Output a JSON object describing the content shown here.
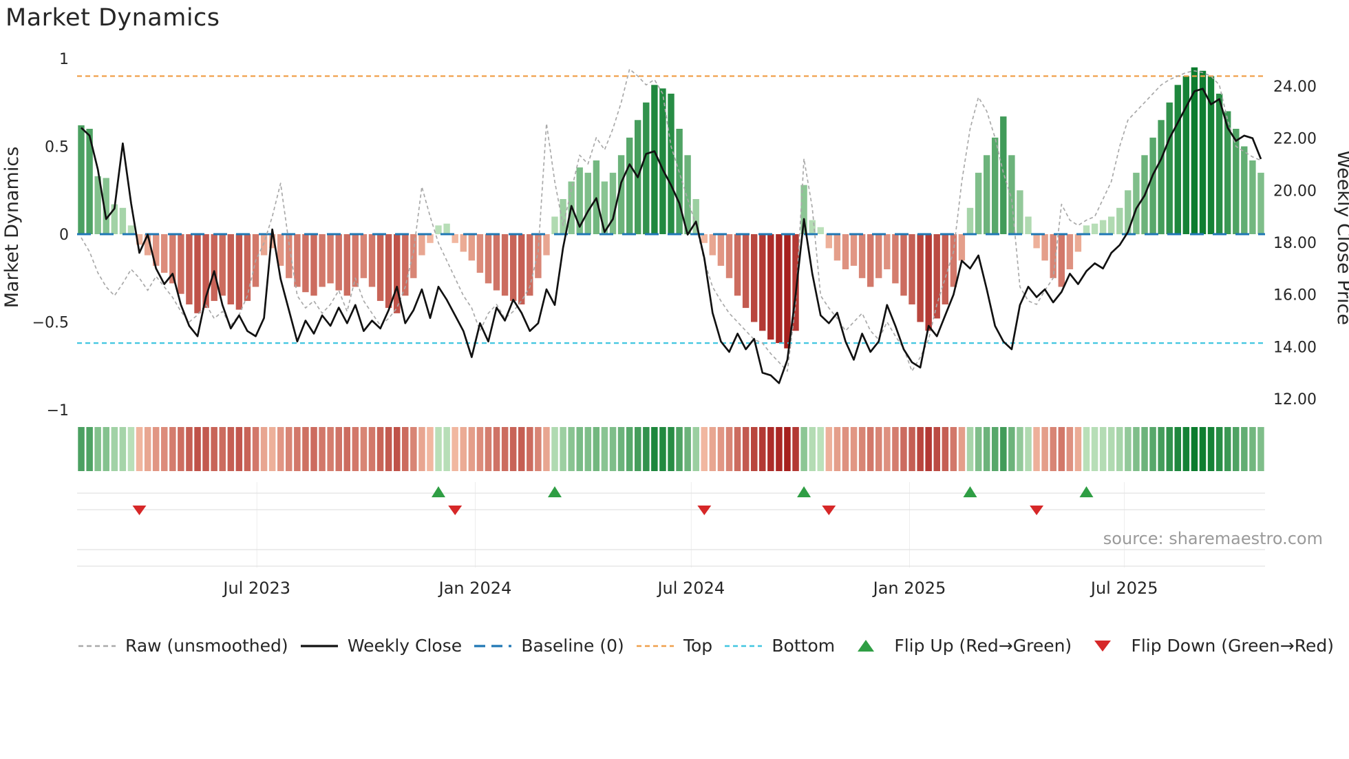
{
  "page": {
    "title": "Market Dynamics",
    "source": "source: sharemaestro.com"
  },
  "axes": {
    "left_label": "Market Dynamics",
    "right_label": "Weekly Close Price",
    "left_ticks": [
      "1",
      "0.5",
      "0",
      "−0.5",
      "−1"
    ],
    "left_tick_values": [
      1,
      0.5,
      0,
      -0.5,
      -1
    ],
    "right_ticks": [
      "24.00",
      "22.00",
      "20.00",
      "18.00",
      "16.00",
      "14.00",
      "12.00"
    ],
    "right_tick_values": [
      24,
      22,
      20,
      18,
      16,
      14,
      12
    ],
    "x_ticks": [
      {
        "label": "Jul 2023",
        "week": 21.14
      },
      {
        "label": "Jan 2024",
        "week": 47.43
      },
      {
        "label": "Jul 2024",
        "week": 73.43
      },
      {
        "label": "Jan 2025",
        "week": 99.71
      },
      {
        "label": "Jul 2025",
        "week": 125.57
      }
    ]
  },
  "legend": {
    "items": [
      {
        "label": "Raw (unsmoothed)",
        "type": "dash",
        "color": "#a9a9a9"
      },
      {
        "label": "Weekly Close",
        "type": "solid",
        "color": "#111111"
      },
      {
        "label": "Baseline (0)",
        "type": "longdash",
        "color": "#1f77b4"
      },
      {
        "label": "Top",
        "type": "dash",
        "color": "#f0a04b"
      },
      {
        "label": "Bottom",
        "type": "dash",
        "color": "#41c6e0"
      },
      {
        "label": "Flip Up (Red→Green)",
        "type": "tri-up",
        "color": "#2f9e44"
      },
      {
        "label": "Flip Down (Green→Red)",
        "type": "tri-down",
        "color": "#d62728"
      }
    ]
  },
  "chart_data": {
    "type": "bar",
    "subtype": "oscillator bars + price line combo with heatmap strip and flip markers",
    "title": "Market Dynamics",
    "xlabel": "",
    "ylabel_left": "Market Dynamics",
    "ylabel_right": "Weekly Close Price",
    "left_axis_range": [
      -1.08,
      1.08
    ],
    "right_axis_range": [
      11.45,
      24.8
    ],
    "start_date": "2023-02-03",
    "frequency_days": 7,
    "n_weeks": 143,
    "reference_lines": {
      "baseline": 0,
      "top": 0.9,
      "bottom": -0.62
    },
    "flip_up_weeks": [
      43,
      57,
      87,
      107,
      121
    ],
    "flip_down_weeks": [
      7,
      45,
      75,
      90,
      115
    ],
    "oscillator": [
      0.62,
      0.6,
      0.33,
      0.32,
      0.17,
      0.15,
      0.05,
      -0.06,
      -0.12,
      -0.18,
      -0.22,
      -0.28,
      -0.34,
      -0.4,
      -0.45,
      -0.42,
      -0.38,
      -0.35,
      -0.4,
      -0.43,
      -0.38,
      -0.3,
      -0.12,
      -0.08,
      -0.18,
      -0.25,
      -0.3,
      -0.33,
      -0.35,
      -0.3,
      -0.28,
      -0.32,
      -0.35,
      -0.3,
      -0.25,
      -0.3,
      -0.38,
      -0.42,
      -0.45,
      -0.35,
      -0.25,
      -0.12,
      -0.05,
      0.05,
      0.06,
      -0.05,
      -0.1,
      -0.15,
      -0.22,
      -0.28,
      -0.32,
      -0.35,
      -0.38,
      -0.4,
      -0.35,
      -0.25,
      -0.12,
      0.1,
      0.2,
      0.3,
      0.38,
      0.35,
      0.42,
      0.3,
      0.35,
      0.45,
      0.55,
      0.65,
      0.75,
      0.85,
      0.83,
      0.8,
      0.6,
      0.45,
      0.2,
      -0.05,
      -0.12,
      -0.18,
      -0.25,
      -0.35,
      -0.42,
      -0.5,
      -0.55,
      -0.6,
      -0.62,
      -0.65,
      -0.55,
      0.28,
      0.08,
      0.04,
      -0.08,
      -0.15,
      -0.2,
      -0.18,
      -0.25,
      -0.3,
      -0.25,
      -0.2,
      -0.28,
      -0.35,
      -0.4,
      -0.5,
      -0.55,
      -0.48,
      -0.4,
      -0.3,
      -0.15,
      0.15,
      0.35,
      0.45,
      0.55,
      0.67,
      0.45,
      0.25,
      0.1,
      -0.08,
      -0.15,
      -0.25,
      -0.3,
      -0.2,
      -0.1,
      0.05,
      0.06,
      0.08,
      0.1,
      0.15,
      0.25,
      0.35,
      0.45,
      0.55,
      0.65,
      0.75,
      0.85,
      0.9,
      0.95,
      0.93,
      0.9,
      0.8,
      0.7,
      0.6,
      0.5,
      0.42,
      0.35
    ],
    "raw_oscillator": [
      -0.02,
      -0.1,
      -0.22,
      -0.3,
      -0.35,
      -0.28,
      -0.2,
      -0.25,
      -0.32,
      -0.24,
      -0.3,
      -0.36,
      -0.44,
      -0.5,
      -0.46,
      -0.4,
      -0.48,
      -0.44,
      -0.52,
      -0.46,
      -0.35,
      -0.15,
      -0.05,
      0.1,
      0.29,
      -0.05,
      -0.35,
      -0.42,
      -0.38,
      -0.45,
      -0.4,
      -0.32,
      -0.44,
      -0.25,
      -0.38,
      -0.45,
      -0.52,
      -0.48,
      -0.42,
      -0.3,
      -0.1,
      0.27,
      0.1,
      -0.05,
      -0.15,
      -0.25,
      -0.35,
      -0.42,
      -0.55,
      -0.45,
      -0.4,
      -0.48,
      -0.44,
      -0.38,
      -0.3,
      -0.1,
      0.63,
      0.3,
      0.05,
      0.25,
      0.45,
      0.4,
      0.55,
      0.48,
      0.6,
      0.75,
      0.94,
      0.9,
      0.85,
      0.88,
      0.8,
      0.5,
      0.35,
      0.2,
      0.05,
      -0.15,
      -0.3,
      -0.38,
      -0.45,
      -0.5,
      -0.55,
      -0.6,
      -0.62,
      -0.68,
      -0.73,
      -0.78,
      -0.4,
      0.43,
      0.15,
      -0.35,
      -0.42,
      -0.48,
      -0.55,
      -0.5,
      -0.45,
      -0.55,
      -0.6,
      -0.5,
      -0.58,
      -0.65,
      -0.78,
      -0.7,
      -0.6,
      -0.4,
      -0.25,
      -0.1,
      0.3,
      0.6,
      0.78,
      0.7,
      0.55,
      0.35,
      0.2,
      -0.3,
      -0.38,
      -0.4,
      -0.32,
      -0.25,
      0.17,
      0.08,
      0.05,
      0.08,
      0.1,
      0.2,
      0.3,
      0.5,
      0.65,
      0.7,
      0.75,
      0.8,
      0.85,
      0.88,
      0.9,
      0.92,
      0.93,
      0.92,
      0.9,
      0.85,
      0.65,
      0.5,
      0.47,
      0.44,
      0.42
    ],
    "weekly_close": [
      22.4,
      22.1,
      20.8,
      18.9,
      19.3,
      21.8,
      19.5,
      17.6,
      18.3,
      17.0,
      16.4,
      16.8,
      15.6,
      14.8,
      14.4,
      15.9,
      16.9,
      15.6,
      14.7,
      15.2,
      14.6,
      14.4,
      15.1,
      18.5,
      16.6,
      15.4,
      14.2,
      15.0,
      14.5,
      15.2,
      14.8,
      15.5,
      14.9,
      15.6,
      14.6,
      15.0,
      14.7,
      15.4,
      16.3,
      14.9,
      15.4,
      16.2,
      15.1,
      16.3,
      15.8,
      15.2,
      14.6,
      13.6,
      14.9,
      14.2,
      15.5,
      15.0,
      15.8,
      15.3,
      14.6,
      14.9,
      16.2,
      15.6,
      17.8,
      19.4,
      18.6,
      19.2,
      19.7,
      18.4,
      18.9,
      20.3,
      21.0,
      20.5,
      21.4,
      21.5,
      20.8,
      20.2,
      19.5,
      18.3,
      18.8,
      17.4,
      15.3,
      14.2,
      13.8,
      14.5,
      13.9,
      14.3,
      13.0,
      12.9,
      12.6,
      13.5,
      16.0,
      18.9,
      16.8,
      15.2,
      14.9,
      15.3,
      14.2,
      13.5,
      14.5,
      13.8,
      14.2,
      15.6,
      14.8,
      13.9,
      13.4,
      13.2,
      14.8,
      14.4,
      15.2,
      16.0,
      17.3,
      17.0,
      17.5,
      16.2,
      14.8,
      14.2,
      13.9,
      15.6,
      16.3,
      15.9,
      16.2,
      15.7,
      16.1,
      16.8,
      16.4,
      16.9,
      17.2,
      17.0,
      17.6,
      17.9,
      18.4,
      19.3,
      19.8,
      20.6,
      21.2,
      22.0,
      22.6,
      23.2,
      23.8,
      23.9,
      23.3,
      23.5,
      22.4,
      21.9,
      22.1,
      22.0,
      21.2
    ],
    "colors": {
      "positive_dark": "#0b7c2e",
      "positive_light": "#c3e5c0",
      "negative_dark": "#a01313",
      "negative_light": "#f7c4ab",
      "raw_line": "#a9a9a9",
      "close_line": "#111111",
      "baseline": "#1f77b4",
      "top": "#f0a04b",
      "bottom": "#41c6e0",
      "flip_up": "#2f9e44",
      "flip_down": "#d62728"
    }
  }
}
